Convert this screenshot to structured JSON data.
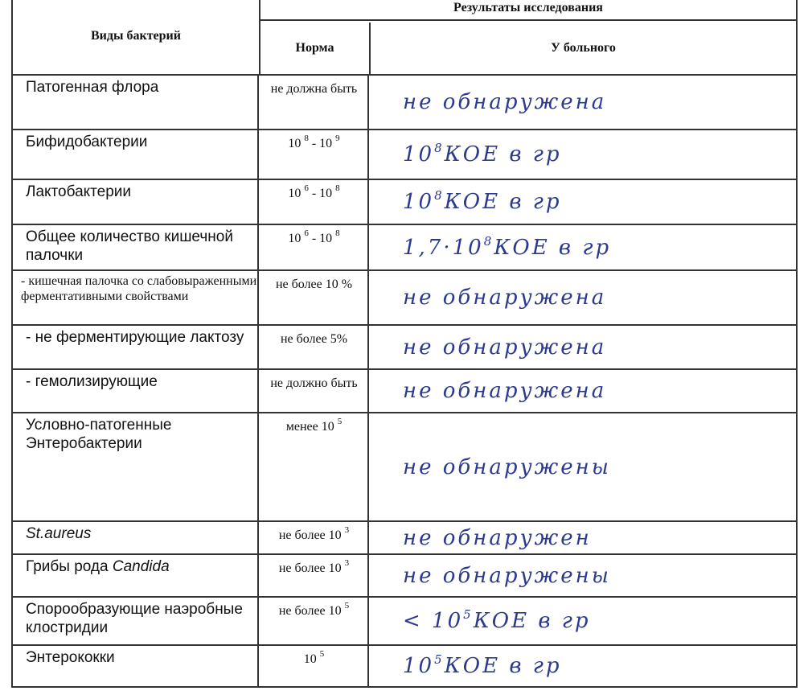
{
  "header": {
    "col_species": "Виды бактерий",
    "col_norm": "Норма",
    "col_patient": "У больного",
    "top_group": "Результаты исследования"
  },
  "rows": [
    {
      "name": [
        {
          "t": "Патогенная флора"
        }
      ],
      "norm": [
        {
          "t": "не должна быть"
        }
      ],
      "patient": [
        {
          "t": "не обнаружена"
        }
      ]
    },
    {
      "name": [
        {
          "t": "Бифидобактерии"
        }
      ],
      "norm": [
        {
          "t": "10 "
        },
        {
          "s": "8"
        },
        {
          "t": " - 10 "
        },
        {
          "s": "9"
        }
      ],
      "patient": [
        {
          "t": "10"
        },
        {
          "s": "8"
        },
        {
          "t": " КОЕ в гр"
        }
      ]
    },
    {
      "name": [
        {
          "t": "Лактобактерии"
        }
      ],
      "norm": [
        {
          "t": "10 "
        },
        {
          "s": "6"
        },
        {
          "t": " - 10 "
        },
        {
          "s": "8"
        }
      ],
      "patient": [
        {
          "t": "10"
        },
        {
          "s": "8"
        },
        {
          "t": " КОЕ в гр"
        }
      ]
    },
    {
      "name": [
        {
          "t": "Общее количество кишечной  палочки"
        }
      ],
      "norm": [
        {
          "t": "10 "
        },
        {
          "s": "6"
        },
        {
          "t": " - 10 "
        },
        {
          "s": "8"
        }
      ],
      "patient": [
        {
          "t": "1,7·10"
        },
        {
          "s": "8"
        },
        {
          "t": " КОЕ в гр"
        }
      ]
    },
    {
      "small": true,
      "name": [
        {
          "t": "- кишечная палочка со слабовыраженными ферментативными свойствами"
        }
      ],
      "norm": [
        {
          "t": "не более 10 %"
        }
      ],
      "patient": [
        {
          "t": "не обнаружена"
        }
      ]
    },
    {
      "name": [
        {
          "t": "- не ферментирующие лактозу"
        }
      ],
      "norm": [
        {
          "t": "не более 5%"
        }
      ],
      "patient": [
        {
          "t": "не обнаружена"
        }
      ]
    },
    {
      "name": [
        {
          "t": "- гемолизирующие"
        }
      ],
      "norm": [
        {
          "t": "не должно быть"
        }
      ],
      "patient": [
        {
          "t": "не обнаружена"
        }
      ]
    },
    {
      "name": [
        {
          "t": "Условно-патогенные Энтеробактерии"
        }
      ],
      "norm": [
        {
          "t": "менее 10 "
        },
        {
          "s": "5"
        }
      ],
      "patient": [
        {
          "t": "не обнаружены"
        }
      ]
    },
    {
      "name": [
        {
          "i": "St.aureus"
        }
      ],
      "norm": [
        {
          "t": "не более 10 "
        },
        {
          "s": "3"
        }
      ],
      "patient": [
        {
          "t": "не обнаружен"
        }
      ]
    },
    {
      "name": [
        {
          "t": "Грибы рода "
        },
        {
          "i": "Candida"
        }
      ],
      "norm": [
        {
          "t": "не более 10 "
        },
        {
          "s": "3"
        }
      ],
      "patient": [
        {
          "t": "не обнаружены"
        }
      ]
    },
    {
      "name": [
        {
          "t": "Спорообразующие наэробные клостридии"
        }
      ],
      "norm": [
        {
          "t": "не более 10 "
        },
        {
          "s": "5"
        }
      ],
      "patient": [
        {
          "t": "< 10"
        },
        {
          "s": "5"
        },
        {
          "t": " КОЕ в гр"
        }
      ]
    },
    {
      "name": [
        {
          "t": "Энтерококки"
        }
      ],
      "norm": [
        {
          "t": "10 "
        },
        {
          "s": "5"
        }
      ],
      "patient": [
        {
          "t": "10"
        },
        {
          "s": "5"
        },
        {
          "t": " КОЕ в гр"
        }
      ]
    }
  ]
}
